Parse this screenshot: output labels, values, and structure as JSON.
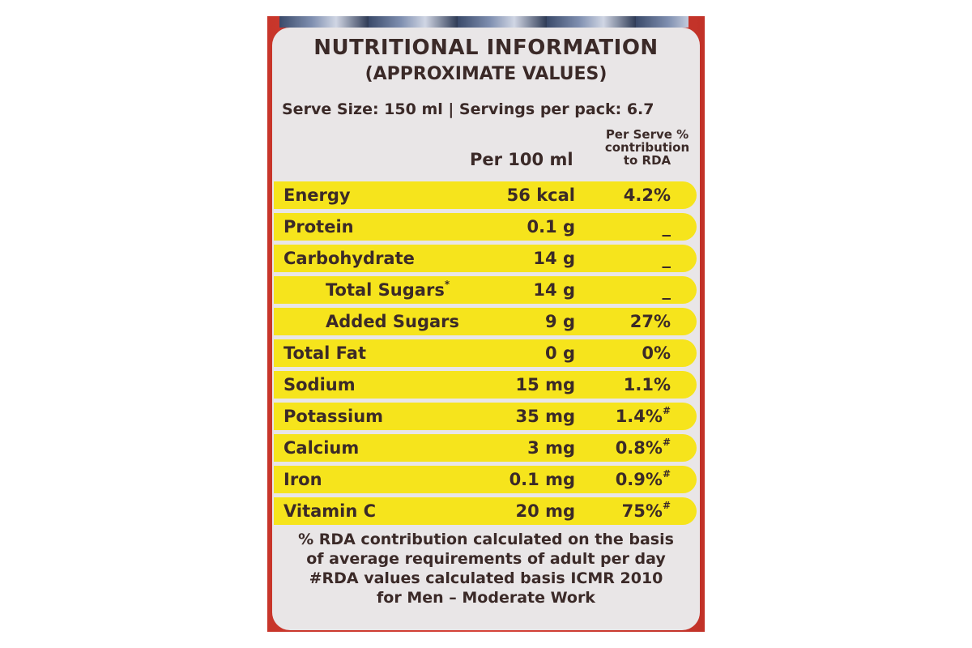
{
  "label": {
    "title": "NUTRITIONAL INFORMATION",
    "subtitle": "(APPROXIMATE VALUES)",
    "serve_line": "Serve Size: 150 ml | Servings per pack: 6.7",
    "column_per100": "Per 100 ml",
    "column_rda_line1": "Per Serve %",
    "column_rda_line2": "contribution",
    "column_rda_line3": "to RDA",
    "rows": [
      {
        "nutrient": "Energy",
        "amount": "56 kcal",
        "rda": "4.2%",
        "mark": ""
      },
      {
        "nutrient": "Protein",
        "amount": "0.1 g",
        "rda": "_",
        "mark": ""
      },
      {
        "nutrient": "Carbohydrate",
        "amount": "14 g",
        "rda": "_",
        "mark": ""
      },
      {
        "nutrient": "Total Sugars",
        "nutrient_mark": "*",
        "amount": "14 g",
        "rda": "_",
        "mark": ""
      },
      {
        "nutrient": "Added Sugars",
        "amount": "9 g",
        "rda": "27%",
        "mark": ""
      },
      {
        "nutrient": "Total Fat",
        "amount": "0 g",
        "rda": "0%",
        "mark": ""
      },
      {
        "nutrient": "Sodium",
        "amount": "15 mg",
        "rda": "1.1%",
        "mark": ""
      },
      {
        "nutrient": "Potassium",
        "amount": "35 mg",
        "rda": "1.4%",
        "mark": "#"
      },
      {
        "nutrient": "Calcium",
        "amount": "3 mg",
        "rda": "0.8%",
        "mark": "#"
      },
      {
        "nutrient": "Iron",
        "amount": "0.1 mg",
        "rda": "0.9%",
        "mark": "#"
      },
      {
        "nutrient": "Vitamin C",
        "amount": "20 mg",
        "rda": "75%",
        "mark": "#"
      }
    ],
    "footnote_1": "% RDA contribution calculated on the basis",
    "footnote_2": "of average requirements of adult per day",
    "footnote_3": "#RDA values calculated basis ICMR 2010",
    "footnote_4": "for Men – Moderate Work"
  },
  "colors": {
    "row_highlight": "#f6e41c",
    "panel": "#e9e6e7",
    "text": "#3b2a28",
    "packaging": "#c8352a"
  }
}
